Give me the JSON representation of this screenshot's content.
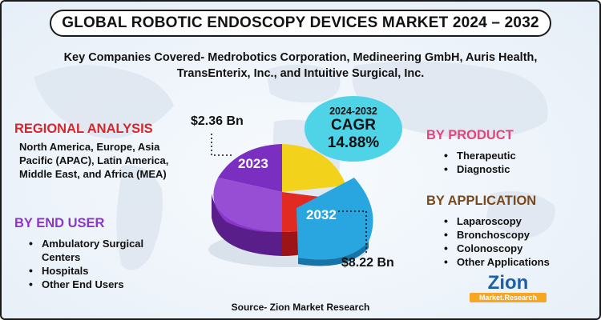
{
  "title": "GLOBAL ROBOTIC ENDOSCOPY DEVICES MARKET 2024 – 2032",
  "companies_line1": "Key Companies Covered- Medrobotics Corporation, Medineering GmbH, Auris Health,",
  "companies_line2": "TransEnterix, Inc., and Intuitive Surgical, Inc.",
  "regional": {
    "heading": "REGIONAL ANALYSIS",
    "text": "North America, Europe, Asia Pacific (APAC), Latin America, Middle East, and Africa (MEA)"
  },
  "end_user": {
    "heading": "BY END USER",
    "items": [
      "Ambulatory Surgical Centers",
      "Hospitals",
      "Other End Users"
    ]
  },
  "product": {
    "heading": "BY PRODUCT",
    "items": [
      "Therapeutic",
      "Diagnostic"
    ]
  },
  "application": {
    "heading": "BY APPLICATION",
    "items": [
      "Laparoscopy",
      "Bronchoscopy",
      "Colonoscopy",
      "Other Applications"
    ]
  },
  "cagr": {
    "years": "2024-2032",
    "label": "CAGR",
    "value": "14.88%"
  },
  "market": {
    "value_2023": "$2.36 Bn",
    "label_2023": "2023",
    "value_2032": "$8.22 Bn",
    "label_2032": "2032"
  },
  "source": "Source- Zion Market Research",
  "logo": {
    "name": "Zion",
    "sub": "Market.Research"
  },
  "colors": {
    "red": "#d7262b",
    "purple": "#8b36c9",
    "pink": "#e0467c",
    "brown": "#7b4a1c",
    "cyan": "#4fd3e6",
    "yellow": "#f2d21a",
    "blue": "#2aa8e0"
  }
}
